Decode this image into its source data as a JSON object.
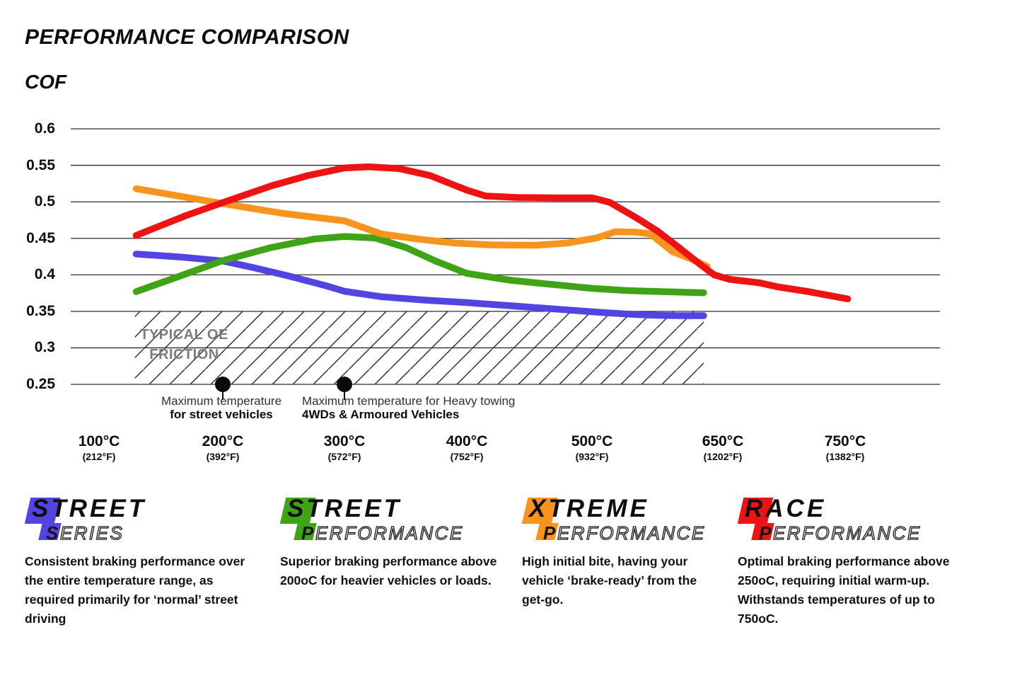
{
  "header": {
    "title": "PERFORMANCE COMPARISON",
    "y_axis_title": "COF"
  },
  "chart_data": {
    "type": "line",
    "title": "PERFORMANCE COMPARISON",
    "ylabel": "COF",
    "ylim": [
      0.25,
      0.6
    ],
    "grid": true,
    "legend_position": "bottom",
    "y_ticks": [
      "0.6",
      "0.55",
      "0.5",
      "0.45",
      "0.4",
      "0.35",
      "0.3",
      "0.25"
    ],
    "x_ticks": [
      {
        "temp": 100,
        "c": "100°C",
        "f": "(212°F)"
      },
      {
        "temp": 200,
        "c": "200°C",
        "f": "(392°F)"
      },
      {
        "temp": 300,
        "c": "300°C",
        "f": "(572°F)"
      },
      {
        "temp": 400,
        "c": "400°C",
        "f": "(752°F)"
      },
      {
        "temp": 500,
        "c": "500°C",
        "f": "(932°F)"
      },
      {
        "temp": 650,
        "c": "650°C",
        "f": "(1202°F)"
      },
      {
        "temp": 750,
        "c": "750°C",
        "f": "(1382°F)"
      }
    ],
    "series": [
      {
        "name": "Street Series",
        "color": "#5244e1",
        "points": [
          [
            130,
            0.4285
          ],
          [
            165,
            0.4245
          ],
          [
            200,
            0.419
          ],
          [
            225,
            0.41
          ],
          [
            255,
            0.398
          ],
          [
            285,
            0.385
          ],
          [
            300,
            0.3775
          ],
          [
            330,
            0.37
          ],
          [
            365,
            0.3655
          ],
          [
            400,
            0.362
          ],
          [
            440,
            0.357
          ],
          [
            480,
            0.352
          ],
          [
            510,
            0.3485
          ],
          [
            545,
            0.346
          ],
          [
            575,
            0.3445
          ],
          [
            600,
            0.344
          ],
          [
            628,
            0.344
          ]
        ]
      },
      {
        "name": "Street Performance",
        "color": "#3fa316",
        "points": [
          [
            130,
            0.377
          ],
          [
            160,
            0.395
          ],
          [
            200,
            0.4195
          ],
          [
            240,
            0.4375
          ],
          [
            275,
            0.449
          ],
          [
            300,
            0.4525
          ],
          [
            325,
            0.4505
          ],
          [
            350,
            0.4375
          ],
          [
            375,
            0.4185
          ],
          [
            400,
            0.402
          ],
          [
            435,
            0.3925
          ],
          [
            470,
            0.3865
          ],
          [
            500,
            0.3815
          ],
          [
            540,
            0.3785
          ],
          [
            580,
            0.377
          ],
          [
            628,
            0.3755
          ]
        ]
      },
      {
        "name": "Xtreme Performance",
        "color": "#f8941d",
        "points": [
          [
            130,
            0.518
          ],
          [
            200,
            0.4975
          ],
          [
            250,
            0.484
          ],
          [
            300,
            0.474
          ],
          [
            330,
            0.456
          ],
          [
            360,
            0.449
          ],
          [
            390,
            0.4435
          ],
          [
            420,
            0.441
          ],
          [
            455,
            0.4405
          ],
          [
            480,
            0.4435
          ],
          [
            505,
            0.4505
          ],
          [
            527,
            0.459
          ],
          [
            550,
            0.4585
          ],
          [
            567,
            0.456
          ],
          [
            592,
            0.432
          ],
          [
            615,
            0.421
          ],
          [
            632,
            0.4115
          ]
        ]
      },
      {
        "name": "Race Performance",
        "color": "#ee1212",
        "points": [
          [
            130,
            0.454
          ],
          [
            170,
            0.481
          ],
          [
            200,
            0.499
          ],
          [
            240,
            0.522
          ],
          [
            270,
            0.536
          ],
          [
            300,
            0.5465
          ],
          [
            320,
            0.548
          ],
          [
            345,
            0.5455
          ],
          [
            370,
            0.536
          ],
          [
            400,
            0.516
          ],
          [
            415,
            0.508
          ],
          [
            440,
            0.506
          ],
          [
            470,
            0.5055
          ],
          [
            500,
            0.5055
          ],
          [
            520,
            0.4995
          ],
          [
            551,
            0.478
          ],
          [
            575,
            0.46
          ],
          [
            600,
            0.437
          ],
          [
            626,
            0.4125
          ],
          [
            640,
            0.4
          ],
          [
            655,
            0.394
          ],
          [
            680,
            0.389
          ],
          [
            695,
            0.3835
          ],
          [
            720,
            0.377
          ],
          [
            752,
            0.367
          ]
        ]
      }
    ],
    "oe_friction_zone": {
      "line1": "TYPICAL OE",
      "line2": "FRICTION",
      "cof_range": [
        0.25,
        0.35
      ],
      "temp_range": [
        129,
        628
      ]
    },
    "markers": [
      {
        "temp": 200,
        "line1": "Maximum temperature",
        "line2": "for street vehicles"
      },
      {
        "temp": 300,
        "line1": "Maximum temperature for Heavy towing",
        "line2": "4WDs & Armoured Vehicles"
      }
    ]
  },
  "legend": [
    {
      "word1": "STREET",
      "word2": "SERIES",
      "color": "#5244e1",
      "description": "Consistent braking performance over the entire temperature range, as required primarily for ‘normal’ street driving"
    },
    {
      "word1": "STREET",
      "word2": "PERFORMANCE",
      "color": "#3fa316",
      "description": "Superior braking performance above 200oC for heavier vehicles or loads."
    },
    {
      "word1": "XTREME",
      "word2": "PERFORMANCE",
      "color": "#f8941d",
      "description": "High initial bite, having your vehicle ‘brake-ready’ from the get-go."
    },
    {
      "word1": "RACE",
      "word2": "PERFORMANCE",
      "color": "#ee1212",
      "description": "Optimal braking performance above 250oC, requiring initial warm-up. Withstands temperatures of up to 750oC."
    }
  ]
}
